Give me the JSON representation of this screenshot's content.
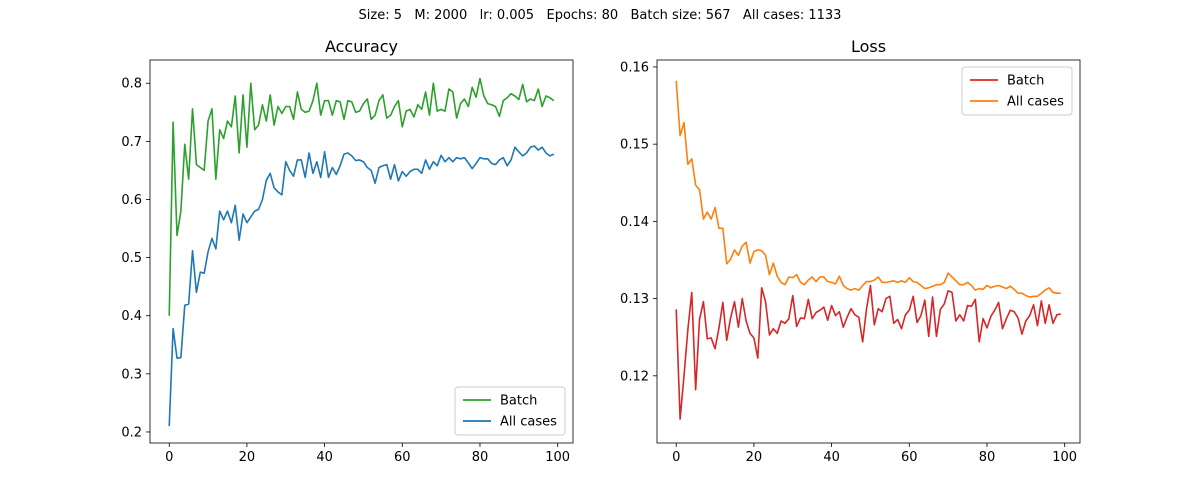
{
  "suptitle": "Size: 5   M: 2000   lr: 0.005   Epochs: 80   Batch size: 567   All cases: 1133",
  "chart_data": [
    {
      "type": "line",
      "title": "Accuracy",
      "xlabel": "",
      "ylabel": "",
      "xlim": [
        -4.95,
        103.95
      ],
      "ylim": [
        0.181,
        0.84
      ],
      "xticks": [
        0,
        20,
        40,
        60,
        80,
        100
      ],
      "yticks": [
        0.2,
        0.3,
        0.4,
        0.5,
        0.6,
        0.7,
        0.8
      ],
      "grid": false,
      "legend_position": "lower-right",
      "series": [
        {
          "name": "Batch",
          "color": "#2ca02c",
          "x": [
            0,
            1,
            2,
            3,
            4,
            5,
            6,
            7,
            8,
            9,
            10,
            11,
            12,
            13,
            14,
            15,
            16,
            17,
            18,
            19,
            20,
            21,
            22,
            23,
            24,
            25,
            26,
            27,
            28,
            29,
            30,
            31,
            32,
            33,
            34,
            35,
            36,
            37,
            38,
            39,
            40,
            41,
            42,
            43,
            44,
            45,
            46,
            47,
            48,
            49,
            50,
            51,
            52,
            53,
            54,
            55,
            56,
            57,
            58,
            59,
            60,
            61,
            62,
            63,
            64,
            65,
            66,
            67,
            68,
            69,
            70,
            71,
            72,
            73,
            74,
            75,
            76,
            77,
            78,
            79,
            80,
            81,
            82,
            83,
            84,
            85,
            86,
            87,
            88,
            89,
            90,
            91,
            92,
            93,
            94,
            95,
            96,
            97,
            98,
            99
          ],
          "values": [
            0.4,
            0.733,
            0.538,
            0.58,
            0.695,
            0.635,
            0.756,
            0.66,
            0.655,
            0.65,
            0.735,
            0.756,
            0.635,
            0.72,
            0.705,
            0.735,
            0.725,
            0.778,
            0.68,
            0.78,
            0.69,
            0.8,
            0.72,
            0.728,
            0.763,
            0.735,
            0.78,
            0.728,
            0.76,
            0.748,
            0.76,
            0.76,
            0.738,
            0.785,
            0.755,
            0.75,
            0.752,
            0.77,
            0.8,
            0.745,
            0.77,
            0.77,
            0.745,
            0.77,
            0.768,
            0.738,
            0.77,
            0.768,
            0.75,
            0.752,
            0.765,
            0.773,
            0.738,
            0.745,
            0.77,
            0.78,
            0.74,
            0.745,
            0.76,
            0.77,
            0.725,
            0.752,
            0.755,
            0.742,
            0.763,
            0.755,
            0.785,
            0.745,
            0.8,
            0.752,
            0.755,
            0.752,
            0.79,
            0.785,
            0.74,
            0.765,
            0.773,
            0.76,
            0.793,
            0.776,
            0.808,
            0.778,
            0.765,
            0.763,
            0.76,
            0.743,
            0.77,
            0.775,
            0.782,
            0.778,
            0.772,
            0.798,
            0.768,
            0.773,
            0.77,
            0.79,
            0.76,
            0.778,
            0.775,
            0.77
          ]
        },
        {
          "name": "All cases",
          "color": "#1f77b4",
          "x": [
            0,
            1,
            2,
            3,
            4,
            5,
            6,
            7,
            8,
            9,
            10,
            11,
            12,
            13,
            14,
            15,
            16,
            17,
            18,
            19,
            20,
            21,
            22,
            23,
            24,
            25,
            26,
            27,
            28,
            29,
            30,
            31,
            32,
            33,
            34,
            35,
            36,
            37,
            38,
            39,
            40,
            41,
            42,
            43,
            44,
            45,
            46,
            47,
            48,
            49,
            50,
            51,
            52,
            53,
            54,
            55,
            56,
            57,
            58,
            59,
            60,
            61,
            62,
            63,
            64,
            65,
            66,
            67,
            68,
            69,
            70,
            71,
            72,
            73,
            74,
            75,
            76,
            77,
            78,
            79,
            80,
            81,
            82,
            83,
            84,
            85,
            86,
            87,
            88,
            89,
            90,
            91,
            92,
            93,
            94,
            95,
            96,
            97,
            98,
            99
          ],
          "values": [
            0.21,
            0.378,
            0.327,
            0.328,
            0.418,
            0.42,
            0.512,
            0.44,
            0.475,
            0.473,
            0.51,
            0.533,
            0.515,
            0.58,
            0.565,
            0.58,
            0.56,
            0.59,
            0.53,
            0.575,
            0.56,
            0.57,
            0.58,
            0.583,
            0.6,
            0.633,
            0.645,
            0.62,
            0.613,
            0.608,
            0.665,
            0.65,
            0.64,
            0.668,
            0.668,
            0.638,
            0.68,
            0.645,
            0.665,
            0.638,
            0.682,
            0.638,
            0.655,
            0.643,
            0.658,
            0.678,
            0.68,
            0.675,
            0.667,
            0.668,
            0.665,
            0.655,
            0.65,
            0.628,
            0.655,
            0.658,
            0.66,
            0.635,
            0.66,
            0.632,
            0.648,
            0.64,
            0.648,
            0.652,
            0.652,
            0.645,
            0.668,
            0.652,
            0.665,
            0.658,
            0.676,
            0.665,
            0.672,
            0.665,
            0.672,
            0.67,
            0.672,
            0.663,
            0.653,
            0.662,
            0.672,
            0.67,
            0.67,
            0.662,
            0.66,
            0.668,
            0.672,
            0.658,
            0.668,
            0.69,
            0.682,
            0.675,
            0.68,
            0.69,
            0.692,
            0.685,
            0.69,
            0.68,
            0.675,
            0.678
          ]
        }
      ]
    },
    {
      "type": "line",
      "title": "Loss",
      "xlabel": "",
      "ylabel": "",
      "xlim": [
        -4.95,
        103.95
      ],
      "ylim": [
        0.1113,
        0.1609
      ],
      "xticks": [
        0,
        20,
        40,
        60,
        80,
        100
      ],
      "yticks": [
        0.12,
        0.13,
        0.14,
        0.15,
        0.16
      ],
      "grid": false,
      "legend_position": "upper-right",
      "series": [
        {
          "name": "Batch",
          "color": "#d62728",
          "x": [
            0,
            1,
            2,
            3,
            4,
            5,
            6,
            7,
            8,
            9,
            10,
            11,
            12,
            13,
            14,
            15,
            16,
            17,
            18,
            19,
            20,
            21,
            22,
            23,
            24,
            25,
            26,
            27,
            28,
            29,
            30,
            31,
            32,
            33,
            34,
            35,
            36,
            37,
            38,
            39,
            40,
            41,
            42,
            43,
            44,
            45,
            46,
            47,
            48,
            49,
            50,
            51,
            52,
            53,
            54,
            55,
            56,
            57,
            58,
            59,
            60,
            61,
            62,
            63,
            64,
            65,
            66,
            67,
            68,
            69,
            70,
            71,
            72,
            73,
            74,
            75,
            76,
            77,
            78,
            79,
            80,
            81,
            82,
            83,
            84,
            85,
            86,
            87,
            88,
            89,
            90,
            91,
            92,
            93,
            94,
            95,
            96,
            97,
            98,
            99
          ],
          "values": [
            0.1286,
            0.1144,
            0.12,
            0.126,
            0.1308,
            0.1182,
            0.1273,
            0.1296,
            0.1248,
            0.1249,
            0.1235,
            0.1262,
            0.1295,
            0.1246,
            0.1275,
            0.1296,
            0.1263,
            0.13,
            0.1271,
            0.1255,
            0.1249,
            0.1223,
            0.1314,
            0.1296,
            0.1253,
            0.1261,
            0.1255,
            0.1271,
            0.1268,
            0.1274,
            0.1304,
            0.1264,
            0.1275,
            0.1274,
            0.1299,
            0.1274,
            0.1282,
            0.1285,
            0.1289,
            0.1272,
            0.1291,
            0.1278,
            0.1283,
            0.1263,
            0.1276,
            0.1287,
            0.1279,
            0.1276,
            0.1244,
            0.1287,
            0.1317,
            0.1266,
            0.1287,
            0.1283,
            0.13,
            0.1303,
            0.1268,
            0.1273,
            0.1261,
            0.1279,
            0.1285,
            0.1303,
            0.1269,
            0.1278,
            0.1298,
            0.1251,
            0.1302,
            0.1251,
            0.1286,
            0.1293,
            0.131,
            0.1308,
            0.1271,
            0.1279,
            0.1271,
            0.1291,
            0.129,
            0.1299,
            0.1244,
            0.1274,
            0.1262,
            0.1277,
            0.1285,
            0.1295,
            0.1261,
            0.1274,
            0.1285,
            0.1283,
            0.1275,
            0.1254,
            0.1271,
            0.1278,
            0.1292,
            0.1265,
            0.1297,
            0.1268,
            0.1292,
            0.1268,
            0.1279,
            0.128
          ]
        },
        {
          "name": "All cases",
          "color": "#ff7f0e",
          "x": [
            0,
            1,
            2,
            3,
            4,
            5,
            6,
            7,
            8,
            9,
            10,
            11,
            12,
            13,
            14,
            15,
            16,
            17,
            18,
            19,
            20,
            21,
            22,
            23,
            24,
            25,
            26,
            27,
            28,
            29,
            30,
            31,
            32,
            33,
            34,
            35,
            36,
            37,
            38,
            39,
            40,
            41,
            42,
            43,
            44,
            45,
            46,
            47,
            48,
            49,
            50,
            51,
            52,
            53,
            54,
            55,
            56,
            57,
            58,
            59,
            60,
            61,
            62,
            63,
            64,
            65,
            66,
            67,
            68,
            69,
            70,
            71,
            72,
            73,
            74,
            75,
            76,
            77,
            78,
            79,
            80,
            81,
            82,
            83,
            84,
            85,
            86,
            87,
            88,
            89,
            90,
            91,
            92,
            93,
            94,
            95,
            96,
            97,
            98,
            99
          ],
          "values": [
            0.1582,
            0.1511,
            0.1528,
            0.1474,
            0.1481,
            0.1447,
            0.1441,
            0.1403,
            0.1412,
            0.1403,
            0.1418,
            0.1391,
            0.1391,
            0.1345,
            0.1351,
            0.1363,
            0.1356,
            0.1368,
            0.1373,
            0.1346,
            0.1361,
            0.1363,
            0.1362,
            0.1356,
            0.1331,
            0.1346,
            0.1329,
            0.1321,
            0.1318,
            0.1328,
            0.1327,
            0.1331,
            0.1321,
            0.1318,
            0.1324,
            0.1328,
            0.1322,
            0.1328,
            0.1328,
            0.1322,
            0.1321,
            0.1319,
            0.1329,
            0.1317,
            0.1313,
            0.1311,
            0.1313,
            0.1311,
            0.1317,
            0.1322,
            0.1322,
            0.1324,
            0.1328,
            0.1321,
            0.1321,
            0.1322,
            0.1323,
            0.1321,
            0.1323,
            0.1321,
            0.1327,
            0.1322,
            0.1321,
            0.1317,
            0.1313,
            0.1314,
            0.1316,
            0.1318,
            0.1318,
            0.1321,
            0.1333,
            0.1328,
            0.1323,
            0.1318,
            0.1318,
            0.1321,
            0.1317,
            0.1311,
            0.1313,
            0.1312,
            0.1317,
            0.1314,
            0.1316,
            0.1317,
            0.1315,
            0.1313,
            0.1316,
            0.1312,
            0.1307,
            0.1307,
            0.1304,
            0.1302,
            0.1303,
            0.1303,
            0.1307,
            0.1311,
            0.1314,
            0.1308,
            0.1307,
            0.1307
          ]
        }
      ]
    }
  ]
}
